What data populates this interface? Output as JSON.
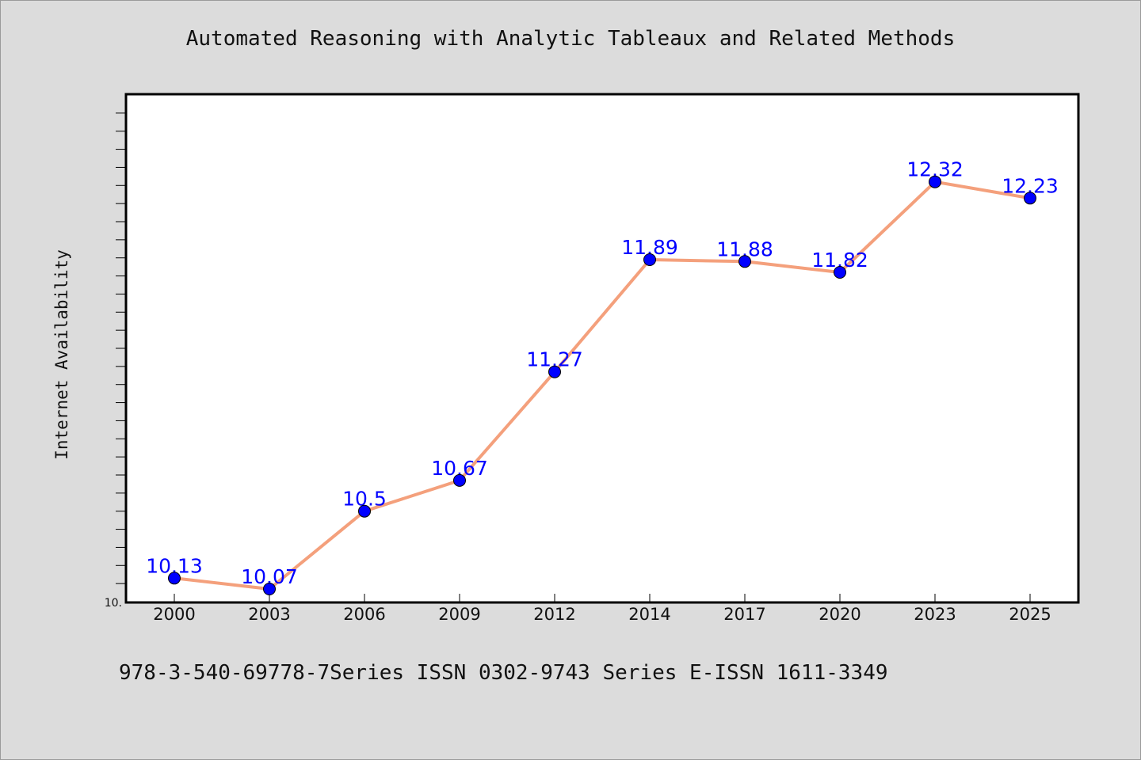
{
  "title": "Automated Reasoning with Analytic Tableaux and Related Methods",
  "footer": "978-3-540-69778-7Series ISSN 0302-9743 Series E-ISSN 1611-3349",
  "chart_data": {
    "type": "line",
    "title": "Automated Reasoning with Analytic Tableaux and Related Methods",
    "xlabel": "",
    "ylabel": "Internet Availability",
    "categories": [
      "2000",
      "2003",
      "2006",
      "2009",
      "2012",
      "2014",
      "2017",
      "2020",
      "2023",
      "2025"
    ],
    "series": [
      {
        "values": [
          10.13,
          10.07,
          10.5,
          10.67,
          11.27,
          11.89,
          11.88,
          11.82,
          12.32,
          12.23
        ],
        "data_labels": [
          "10.13",
          "10.07",
          "10.5",
          "10.67",
          "11.27",
          "11.89",
          "11.88",
          "11.82",
          "12.32",
          "12.23"
        ]
      }
    ],
    "y_min_label": "10.",
    "ylim": [
      10.0,
      12.8
    ],
    "grid": false,
    "legend": "none",
    "colors": {
      "line": "#f4a07c",
      "marker": "#0000ff",
      "label": "#0000ff",
      "plot_background": "#ffffff",
      "page_background": "#dcdcdc"
    }
  }
}
